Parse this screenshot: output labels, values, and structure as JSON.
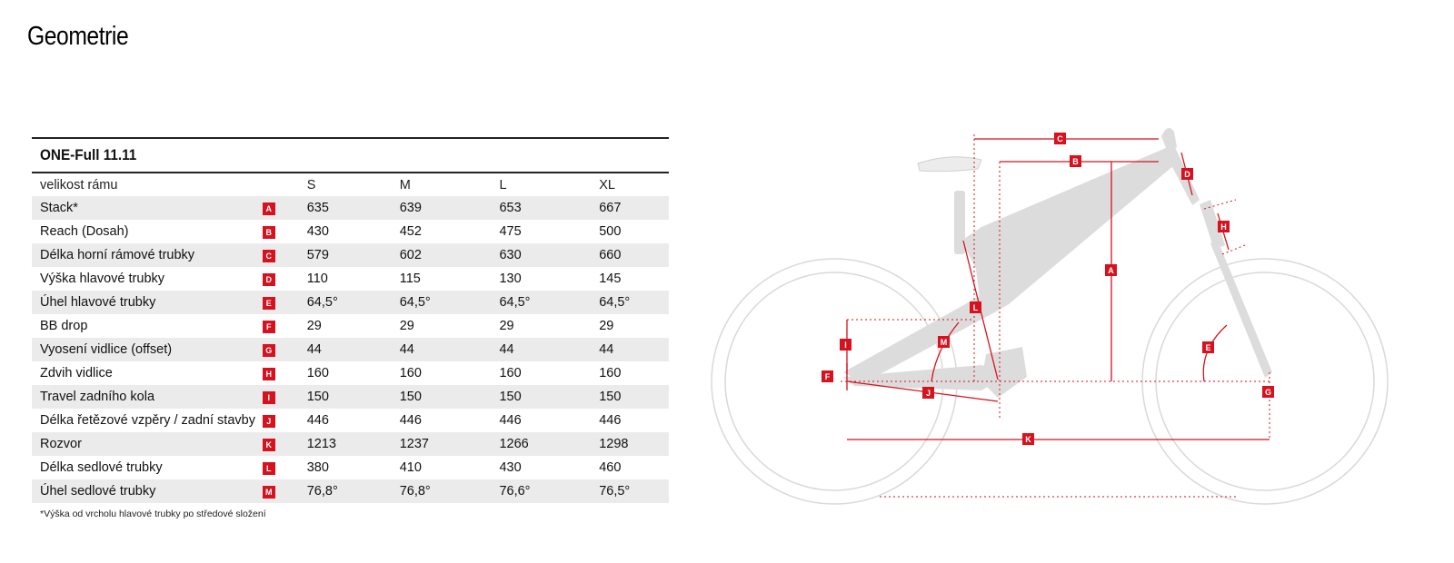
{
  "page": {
    "title": "Geometrie"
  },
  "table": {
    "model": "ONE-Full 11.11",
    "header": {
      "label": "velikost rámu",
      "sizes": [
        "S",
        "M",
        "L",
        "XL"
      ]
    },
    "rows": [
      {
        "label": "Stack*",
        "badge": "A",
        "values": [
          "635",
          "639",
          "653",
          "667"
        ]
      },
      {
        "label": "Reach (Dosah)",
        "badge": "B",
        "values": [
          "430",
          "452",
          "475",
          "500"
        ]
      },
      {
        "label": "Délka horní rámové trubky",
        "badge": "C",
        "values": [
          "579",
          "602",
          "630",
          "660"
        ]
      },
      {
        "label": "Výška hlavové trubky",
        "badge": "D",
        "values": [
          "110",
          "115",
          "130",
          "145"
        ]
      },
      {
        "label": "Úhel hlavové trubky",
        "badge": "E",
        "values": [
          "64,5°",
          "64,5°",
          "64,5°",
          "64,5°"
        ]
      },
      {
        "label": "BB drop",
        "badge": "F",
        "values": [
          "29",
          "29",
          "29",
          "29"
        ]
      },
      {
        "label": "Vyosení vidlice (offset)",
        "badge": "G",
        "values": [
          "44",
          "44",
          "44",
          "44"
        ]
      },
      {
        "label": "Zdvih vidlice",
        "badge": "H",
        "values": [
          "160",
          "160",
          "160",
          "160"
        ]
      },
      {
        "label": "Travel zadního kola",
        "badge": "I",
        "values": [
          "150",
          "150",
          "150",
          "150"
        ]
      },
      {
        "label": "Délka řetězové vzpěry / zadní stavby",
        "badge": "J",
        "values": [
          "446",
          "446",
          "446",
          "446"
        ]
      },
      {
        "label": "Rozvor",
        "badge": "K",
        "values": [
          "1213",
          "1237",
          "1266",
          "1298"
        ]
      },
      {
        "label": "Délka sedlové trubky",
        "badge": "L",
        "values": [
          "380",
          "410",
          "430",
          "460"
        ]
      },
      {
        "label": "Úhel sedlové trubky",
        "badge": "M",
        "values": [
          "76,8°",
          "76,8°",
          "76,6°",
          "76,5°"
        ]
      }
    ],
    "footnote": "*Výška od vrcholu hlavové trubky po středové složení"
  },
  "diagram": {
    "labels": [
      "A",
      "B",
      "C",
      "D",
      "E",
      "F",
      "G",
      "H",
      "I",
      "J",
      "K",
      "L",
      "M"
    ],
    "colors": {
      "accent": "#d7121f",
      "frame": "#d9d9d9",
      "stripe": "#ebebeb"
    }
  }
}
